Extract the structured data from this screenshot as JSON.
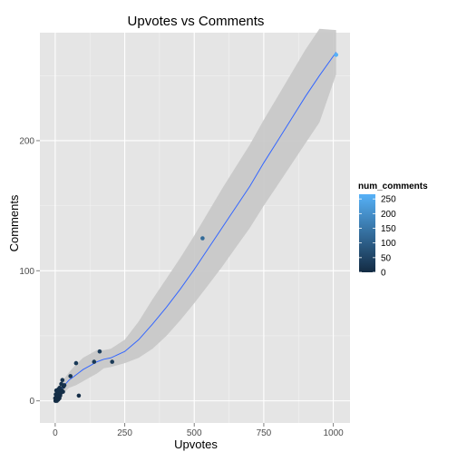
{
  "chart_data": {
    "type": "scatter",
    "title": "Upvotes vs Comments",
    "xlabel": "Upvotes",
    "ylabel": "Comments",
    "xlim": [
      -55,
      1060
    ],
    "ylim": [
      -17,
      283
    ],
    "xticks": [
      0,
      250,
      500,
      750,
      1000
    ],
    "yticks": [
      0,
      100,
      200
    ],
    "xtick_labels": [
      "0",
      "250",
      "500",
      "750",
      "1000"
    ],
    "ytick_labels": [
      "0",
      "100",
      "200"
    ],
    "grid": true,
    "legend_position": "right",
    "legend": {
      "title": "num_comments",
      "type": "colorbar",
      "range": [
        0,
        266
      ],
      "labels": [
        "250",
        "200",
        "150",
        "100",
        "50",
        "0"
      ],
      "label_values": [
        250,
        200,
        150,
        100,
        50,
        0
      ],
      "low_color": "#132B43",
      "high_color": "#56B1F7"
    },
    "points": [
      {
        "x": 0,
        "y": 2
      },
      {
        "x": 1,
        "y": 0
      },
      {
        "x": 2,
        "y": 5
      },
      {
        "x": 3,
        "y": 1
      },
      {
        "x": 4,
        "y": 8
      },
      {
        "x": 5,
        "y": 3
      },
      {
        "x": 6,
        "y": 0
      },
      {
        "x": 7,
        "y": 6
      },
      {
        "x": 8,
        "y": 2
      },
      {
        "x": 9,
        "y": 4
      },
      {
        "x": 10,
        "y": 7
      },
      {
        "x": 11,
        "y": 1
      },
      {
        "x": 12,
        "y": 9
      },
      {
        "x": 13,
        "y": 3
      },
      {
        "x": 14,
        "y": 5
      },
      {
        "x": 15,
        "y": 2
      },
      {
        "x": 16,
        "y": 10
      },
      {
        "x": 18,
        "y": 4
      },
      {
        "x": 20,
        "y": 6
      },
      {
        "x": 22,
        "y": 13
      },
      {
        "x": 24,
        "y": 8
      },
      {
        "x": 26,
        "y": 16
      },
      {
        "x": 28,
        "y": 7
      },
      {
        "x": 30,
        "y": 11
      },
      {
        "x": 33,
        "y": 12
      },
      {
        "x": 55,
        "y": 19
      },
      {
        "x": 75,
        "y": 29
      },
      {
        "x": 85,
        "y": 4
      },
      {
        "x": 140,
        "y": 30
      },
      {
        "x": 160,
        "y": 38
      },
      {
        "x": 205,
        "y": 30
      },
      {
        "x": 530,
        "y": 125
      },
      {
        "x": 1010,
        "y": 266
      }
    ],
    "smooth": {
      "x": [
        0,
        25,
        50,
        75,
        100,
        125,
        150,
        175,
        200,
        250,
        300,
        350,
        400,
        450,
        500,
        550,
        600,
        650,
        700,
        750,
        800,
        850,
        900,
        950,
        1010
      ],
      "y": [
        3,
        10,
        16,
        20,
        24,
        27,
        30,
        32,
        33,
        38,
        47,
        59,
        72,
        86,
        101,
        117,
        133,
        149,
        165,
        183,
        200,
        217,
        234,
        250,
        268
      ],
      "lower": [
        -2,
        5,
        10,
        12,
        15,
        18,
        21,
        25,
        26,
        29,
        33,
        40,
        50,
        62,
        75,
        89,
        103,
        118,
        133,
        150,
        166,
        182,
        198,
        214,
        251
      ],
      "upper": [
        8,
        15,
        22,
        28,
        33,
        36,
        39,
        39,
        40,
        47,
        61,
        78,
        94,
        110,
        127,
        145,
        163,
        180,
        197,
        216,
        234,
        252,
        270,
        286,
        285
      ]
    },
    "line_color": "#3366FF",
    "ribbon_color": "#C6C6C6",
    "panel_color": "#E5E5E5"
  }
}
